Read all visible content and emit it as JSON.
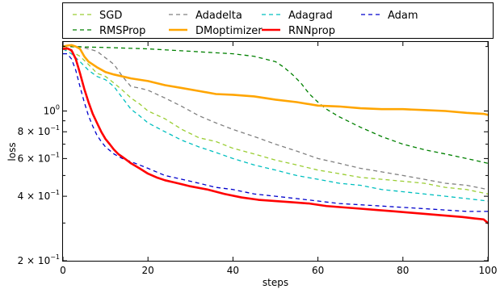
{
  "chart_data": {
    "type": "line",
    "xlabel": "steps",
    "ylabel": "loss",
    "xlim": [
      0,
      100
    ],
    "ylim": [
      0.2,
      2.1
    ],
    "yscale": "log",
    "grid": false,
    "legend_position": "top",
    "x_ticks": [
      {
        "value": 0,
        "label": "0"
      },
      {
        "value": 20,
        "label": "20"
      },
      {
        "value": 40,
        "label": "40"
      },
      {
        "value": 60,
        "label": "60"
      },
      {
        "value": 80,
        "label": "80"
      },
      {
        "value": 100,
        "label": "100"
      }
    ],
    "y_ticks": [
      {
        "value": 1.0,
        "base": "10",
        "exp": "0"
      },
      {
        "value": 0.8,
        "base": "8 × 10",
        "exp": "−1"
      },
      {
        "value": 0.6,
        "base": "6 × 10",
        "exp": "−1"
      },
      {
        "value": 0.4,
        "base": "4 × 10",
        "exp": "−1"
      },
      {
        "value": 0.2,
        "base": "2 × 10",
        "exp": "−1"
      }
    ],
    "series": [
      {
        "name": "SGD",
        "color": "#9acd32",
        "style": "dashed",
        "width": 1.3,
        "x": [
          0,
          2,
          4,
          6,
          8,
          10,
          12,
          14,
          16,
          18,
          20,
          24,
          28,
          32,
          36,
          40,
          45,
          50,
          55,
          60,
          65,
          70,
          75,
          80,
          85,
          90,
          95,
          100
        ],
        "y": [
          1.95,
          1.9,
          1.8,
          1.65,
          1.5,
          1.45,
          1.35,
          1.25,
          1.15,
          1.08,
          1.0,
          0.92,
          0.82,
          0.75,
          0.72,
          0.67,
          0.63,
          0.59,
          0.56,
          0.53,
          0.51,
          0.49,
          0.48,
          0.47,
          0.46,
          0.44,
          0.43,
          0.41
        ]
      },
      {
        "name": "Adadelta",
        "color": "#808080",
        "style": "dashed",
        "width": 1.3,
        "x": [
          0,
          4,
          8,
          12,
          14,
          16,
          18,
          20,
          24,
          28,
          32,
          36,
          40,
          45,
          50,
          55,
          60,
          65,
          70,
          75,
          80,
          85,
          90,
          95,
          100
        ],
        "y": [
          2.0,
          2.0,
          1.9,
          1.65,
          1.45,
          1.3,
          1.28,
          1.25,
          1.15,
          1.05,
          0.95,
          0.88,
          0.82,
          0.76,
          0.7,
          0.65,
          0.6,
          0.57,
          0.54,
          0.52,
          0.5,
          0.48,
          0.46,
          0.45,
          0.43
        ]
      },
      {
        "name": "Adagrad",
        "color": "#00bfbf",
        "style": "dashed",
        "width": 1.3,
        "x": [
          0,
          2,
          4,
          6,
          8,
          10,
          12,
          14,
          16,
          18,
          20,
          24,
          28,
          32,
          36,
          40,
          45,
          50,
          55,
          60,
          65,
          70,
          75,
          80,
          85,
          90,
          95,
          100
        ],
        "y": [
          1.95,
          1.85,
          1.7,
          1.55,
          1.45,
          1.4,
          1.3,
          1.15,
          1.02,
          0.95,
          0.88,
          0.8,
          0.73,
          0.68,
          0.64,
          0.6,
          0.56,
          0.53,
          0.5,
          0.48,
          0.46,
          0.45,
          0.43,
          0.42,
          0.41,
          0.4,
          0.39,
          0.38
        ]
      },
      {
        "name": "Adam",
        "color": "#0000cc",
        "style": "dashed",
        "width": 1.3,
        "x": [
          0,
          1,
          2,
          3,
          4,
          5,
          6,
          7,
          8,
          9,
          10,
          12,
          14,
          16,
          18,
          20,
          24,
          28,
          32,
          36,
          40,
          45,
          50,
          55,
          60,
          65,
          70,
          75,
          80,
          85,
          90,
          95,
          100
        ],
        "y": [
          1.85,
          1.85,
          1.75,
          1.55,
          1.3,
          1.1,
          0.95,
          0.85,
          0.77,
          0.72,
          0.68,
          0.63,
          0.6,
          0.58,
          0.56,
          0.54,
          0.5,
          0.48,
          0.46,
          0.44,
          0.43,
          0.41,
          0.4,
          0.39,
          0.38,
          0.37,
          0.365,
          0.36,
          0.355,
          0.35,
          0.345,
          0.34,
          0.34
        ]
      },
      {
        "name": "RMSProp",
        "color": "#008000",
        "style": "dashed",
        "width": 1.3,
        "x": [
          0,
          10,
          20,
          30,
          40,
          45,
          50,
          52,
          54,
          56,
          58,
          60,
          62,
          65,
          70,
          75,
          80,
          85,
          90,
          95,
          100
        ],
        "y": [
          2.0,
          1.98,
          1.95,
          1.9,
          1.85,
          1.8,
          1.7,
          1.6,
          1.48,
          1.35,
          1.2,
          1.1,
          1.02,
          0.94,
          0.84,
          0.76,
          0.7,
          0.66,
          0.63,
          0.6,
          0.57
        ]
      },
      {
        "name": "DMoptimizer",
        "color": "#ffa500",
        "style": "solid",
        "width": 2.6,
        "x": [
          0,
          1,
          2,
          3,
          4,
          5,
          6,
          8,
          10,
          12,
          14,
          16,
          18,
          20,
          24,
          28,
          32,
          36,
          40,
          45,
          50,
          55,
          60,
          65,
          70,
          75,
          80,
          85,
          90,
          95,
          99,
          100
        ],
        "y": [
          2.0,
          2.02,
          2.03,
          2.0,
          1.95,
          1.8,
          1.7,
          1.6,
          1.52,
          1.48,
          1.45,
          1.42,
          1.4,
          1.38,
          1.32,
          1.28,
          1.24,
          1.2,
          1.19,
          1.17,
          1.13,
          1.1,
          1.06,
          1.05,
          1.03,
          1.02,
          1.02,
          1.01,
          1.0,
          0.98,
          0.97,
          0.96
        ]
      },
      {
        "name": "RNNprop",
        "color": "#ff0000",
        "style": "solid",
        "width": 2.6,
        "x": [
          0,
          1,
          2,
          3,
          4,
          5,
          6,
          7,
          8,
          9,
          10,
          11,
          12,
          13,
          14,
          15,
          16,
          18,
          20,
          22,
          24,
          26,
          28,
          30,
          34,
          38,
          42,
          46,
          50,
          54,
          58,
          62,
          66,
          70,
          74,
          78,
          82,
          86,
          90,
          94,
          97,
          99,
          100
        ],
        "y": [
          1.95,
          1.96,
          1.92,
          1.75,
          1.5,
          1.27,
          1.1,
          0.97,
          0.88,
          0.8,
          0.74,
          0.7,
          0.66,
          0.63,
          0.61,
          0.59,
          0.57,
          0.54,
          0.51,
          0.49,
          0.475,
          0.465,
          0.455,
          0.445,
          0.43,
          0.41,
          0.395,
          0.385,
          0.38,
          0.375,
          0.37,
          0.36,
          0.355,
          0.35,
          0.345,
          0.34,
          0.335,
          0.33,
          0.325,
          0.32,
          0.315,
          0.312,
          0.3
        ]
      }
    ]
  }
}
